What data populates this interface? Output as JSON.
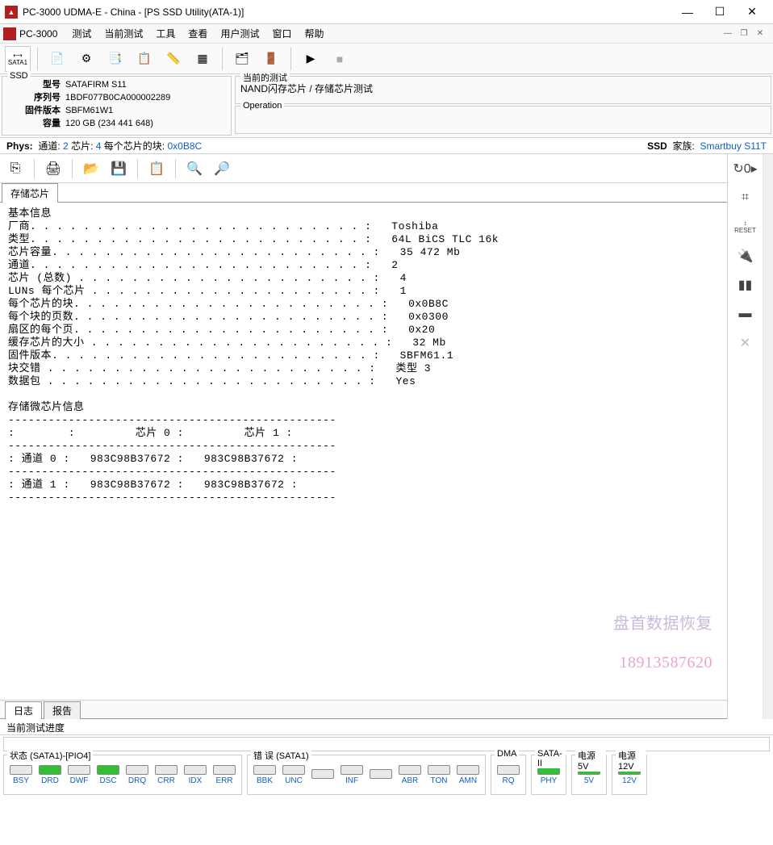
{
  "window": {
    "title": "PC-3000 UDMA-E - China - [PS SSD Utility(ATA-1)]",
    "brand": "PC-3000"
  },
  "menu": {
    "items": [
      "测试",
      "当前测试",
      "工具",
      "查看",
      "用户测试",
      "窗口",
      "帮助"
    ]
  },
  "toolbar1": {
    "sata": "SATA1"
  },
  "ssd": {
    "legend": "SSD",
    "model_lbl": "型号",
    "model": "SATAFIRM   S11",
    "serial_lbl": "序列号",
    "serial": "1BDF077B0CA000002289",
    "fw_lbl": "固件版本",
    "fw": "SBFM61W1",
    "cap_lbl": "容量",
    "cap": "120 GB (234 441 648)"
  },
  "current_test": {
    "legend": "当前的测试",
    "text": "NAND闪存芯片 / 存储芯片测试"
  },
  "operation": {
    "legend": "Operation"
  },
  "phys": {
    "label": "Phys:",
    "ch_lbl": "通道:",
    "ch": "2",
    "chip_lbl": "芯片:",
    "chip": "4",
    "blocks_lbl": "每个芯片的块:",
    "blocks": "0x0B8C",
    "ssd_lbl": "SSD",
    "family_lbl": "家族:",
    "family": "Smartbuy S11T"
  },
  "tab_storage": "存储芯片",
  "log": {
    "basic_info": "基本信息",
    "vendor_lbl": "厂商",
    "vendor": "Toshiba",
    "type_lbl": "类型",
    "type": "64L BiCS TLC 16k",
    "chipcap_lbl": "芯片容量",
    "chipcap": "35 472 Mb",
    "channel_lbl": "通道",
    "channel": "2",
    "chips_lbl": "芯片 (总数)",
    "chips": "4",
    "luns_lbl": "LUNs 每个芯片",
    "luns": "1",
    "blocks_lbl": "每个芯片的块",
    "blocks": "0x0B8C",
    "pages_lbl": "每个块的页数",
    "pages": "0x0300",
    "sector_lbl": "扇区的每个页",
    "sector": "0x20",
    "cache_lbl": "缓存芯片的大小",
    "cache": "32 Mb",
    "fw_lbl": "固件版本",
    "fw": "SBFM61.1",
    "inter_lbl": "块交错",
    "inter": "类型 3",
    "pkt_lbl": "数据包",
    "pkt": "Yes",
    "micro_title": "存储微芯片信息",
    "chip0_hdr": "芯片 0",
    "chip1_hdr": "芯片 1",
    "ch0_lbl": "通道 0",
    "ch1_lbl": "通道 1",
    "id": "983C98B37672"
  },
  "watermark": {
    "line1": "盘首数据恢复",
    "line2": "18913587620"
  },
  "bottom_tabs": {
    "log": "日志",
    "report": "报告"
  },
  "progress_lbl": "当前测试进度",
  "status": {
    "group_state": "状态 (SATA1)-[PIO4]",
    "group_err": "错 误 (SATA1)",
    "group_dma": "DMA",
    "group_sata2": "SATA-II",
    "group_5v": "电源 5V",
    "group_12v": "电源 12V",
    "state_cells": [
      {
        "l": "BSY",
        "on": false
      },
      {
        "l": "DRD",
        "on": true
      },
      {
        "l": "DWF",
        "on": false
      },
      {
        "l": "DSC",
        "on": true
      },
      {
        "l": "DRQ",
        "on": false
      },
      {
        "l": "CRR",
        "on": false
      },
      {
        "l": "IDX",
        "on": false
      },
      {
        "l": "ERR",
        "on": false
      }
    ],
    "err_cells": [
      {
        "l": "BBK",
        "on": false
      },
      {
        "l": "UNC",
        "on": false
      },
      {
        "l": "",
        "on": false
      },
      {
        "l": "INF",
        "on": false
      },
      {
        "l": "",
        "on": false
      },
      {
        "l": "ABR",
        "on": false
      },
      {
        "l": "TON",
        "on": false
      },
      {
        "l": "AMN",
        "on": false
      }
    ],
    "dma": {
      "l": "RQ",
      "on": false
    },
    "sata2": {
      "l": "PHY",
      "on": true
    },
    "p5v": {
      "l": "5V",
      "on": true
    },
    "p12v": {
      "l": "12V",
      "on": true
    }
  }
}
